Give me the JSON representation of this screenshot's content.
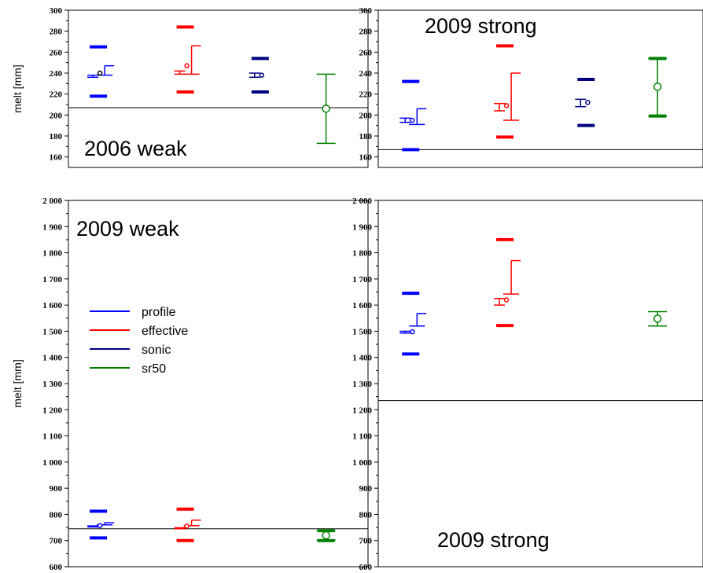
{
  "colors": {
    "profile": "#0000ff",
    "effective": "#ff0000",
    "sonic": "#000080",
    "sr50": "#008000"
  },
  "legend": {
    "entries": [
      {
        "label": "profile",
        "color": "#0000ff"
      },
      {
        "label": "effective",
        "color": "#ff0000"
      },
      {
        "label": "sonic",
        "color": "#000080"
      },
      {
        "label": "sr50",
        "color": "#008000"
      }
    ],
    "panel": 2
  },
  "chart_data": [
    {
      "type": "scatter",
      "title": "2006 weak",
      "ylabel": "melt [mm]",
      "ylim": [
        150,
        300
      ],
      "yticks": [
        160,
        180,
        200,
        220,
        240,
        260,
        280,
        300
      ],
      "ytick_labels": [
        "160",
        "180",
        "200",
        "220",
        "240",
        "260",
        "280",
        "300"
      ],
      "reference_line": 207,
      "series": [
        {
          "name": "profile",
          "color": "#0000ff",
          "point": 240,
          "short_bracket": [
            236,
            238
          ],
          "long_bracket": [
            238,
            247
          ],
          "thick_marks": [
            218,
            265
          ]
        },
        {
          "name": "effective",
          "color": "#ff0000",
          "point": 247,
          "short_bracket": [
            239,
            242
          ],
          "long_bracket": [
            239,
            266
          ],
          "thick_marks": [
            222,
            284
          ]
        },
        {
          "name": "sonic",
          "color": "#000080",
          "point": 238,
          "short_bracket": [
            236,
            240
          ],
          "long_bracket": null,
          "thick_marks": [
            222,
            254
          ]
        },
        {
          "name": "sr50",
          "color": "#008000",
          "point": 206,
          "error_bar": [
            173,
            239
          ],
          "thick_marks": null
        }
      ]
    },
    {
      "type": "scatter",
      "title": "2009 strong",
      "ylabel": "",
      "ylim": [
        150,
        300
      ],
      "yticks": [
        160,
        180,
        200,
        220,
        240,
        260,
        280,
        300
      ],
      "ytick_labels": [
        "160",
        "180",
        "200",
        "220",
        "240",
        "260",
        "280",
        "300"
      ],
      "reference_line": 167,
      "series": [
        {
          "name": "profile",
          "color": "#0000ff",
          "point": 195,
          "short_bracket": [
            193,
            197
          ],
          "long_bracket": [
            191,
            206
          ],
          "thick_marks": [
            167,
            232
          ]
        },
        {
          "name": "effective",
          "color": "#ff0000",
          "point": 209,
          "short_bracket": [
            204,
            211
          ],
          "long_bracket": [
            195,
            240
          ],
          "thick_marks": [
            179,
            266
          ]
        },
        {
          "name": "sonic",
          "color": "#000080",
          "point": 212,
          "short_bracket": [
            208,
            215
          ],
          "long_bracket": null,
          "thick_marks": [
            190,
            234
          ]
        },
        {
          "name": "sr50",
          "color": "#008000",
          "point": 227,
          "error_bar": [
            199,
            254
          ],
          "thick_marks": [
            199,
            254
          ]
        }
      ]
    },
    {
      "type": "scatter",
      "title": "2009 weak",
      "ylabel": "melt [mm]",
      "ylim": [
        600,
        2000
      ],
      "yticks": [
        600,
        700,
        800,
        900,
        1000,
        1100,
        1200,
        1300,
        1400,
        1500,
        1600,
        1700,
        1800,
        1900,
        2000
      ],
      "ytick_labels": [
        "600",
        "700",
        "800",
        "900",
        "1 000",
        "1 100",
        "1 200",
        "1 300",
        "1 400",
        "1 500",
        "1 600",
        "1 700",
        "1 800",
        "1 900",
        "2 000"
      ],
      "reference_line": 745,
      "series": [
        {
          "name": "profile",
          "color": "#0000ff",
          "point": 757,
          "short_bracket": [
            752,
            756
          ],
          "long_bracket": [
            760,
            768
          ],
          "thick_marks": [
            710,
            812
          ]
        },
        {
          "name": "effective",
          "color": "#ff0000",
          "point": 755,
          "short_bracket": [
            745,
            749
          ],
          "long_bracket": [
            757,
            778
          ],
          "thick_marks": [
            700,
            820
          ]
        },
        {
          "name": "sonic",
          "color": "#000080",
          "point": null,
          "short_bracket": null,
          "long_bracket": null,
          "thick_marks": null
        },
        {
          "name": "sr50",
          "color": "#008000",
          "point": 720,
          "error_bar": [
            702,
            738
          ],
          "thick_marks": [
            700,
            738
          ]
        }
      ]
    },
    {
      "type": "scatter",
      "title": "2009 strong",
      "ylabel": "",
      "ylim": [
        600,
        2000
      ],
      "yticks": [
        600,
        700,
        800,
        900,
        1000,
        1100,
        1200,
        1300,
        1400,
        1500,
        1600,
        1700,
        1800,
        1900,
        2000
      ],
      "ytick_labels": [
        "600",
        "700",
        "800",
        "900",
        "1 000",
        "1 100",
        "1 200",
        "1 300",
        "1 400",
        "1 500",
        "1 600",
        "1 700",
        "1 800",
        "1 900",
        "2 000"
      ],
      "reference_line": 1235,
      "series": [
        {
          "name": "profile",
          "color": "#0000ff",
          "point": 1498,
          "short_bracket": [
            1493,
            1500
          ],
          "long_bracket": [
            1520,
            1568
          ],
          "thick_marks": [
            1413,
            1645
          ]
        },
        {
          "name": "effective",
          "color": "#ff0000",
          "point": 1620,
          "short_bracket": [
            1600,
            1625
          ],
          "long_bracket": [
            1642,
            1770
          ],
          "thick_marks": [
            1522,
            1850
          ]
        },
        {
          "name": "sonic",
          "color": "#000080",
          "point": null,
          "short_bracket": null,
          "long_bracket": null,
          "thick_marks": null
        },
        {
          "name": "sr50",
          "color": "#008000",
          "point": 1548,
          "error_bar": [
            1520,
            1575
          ],
          "thick_marks": null
        }
      ]
    }
  ]
}
